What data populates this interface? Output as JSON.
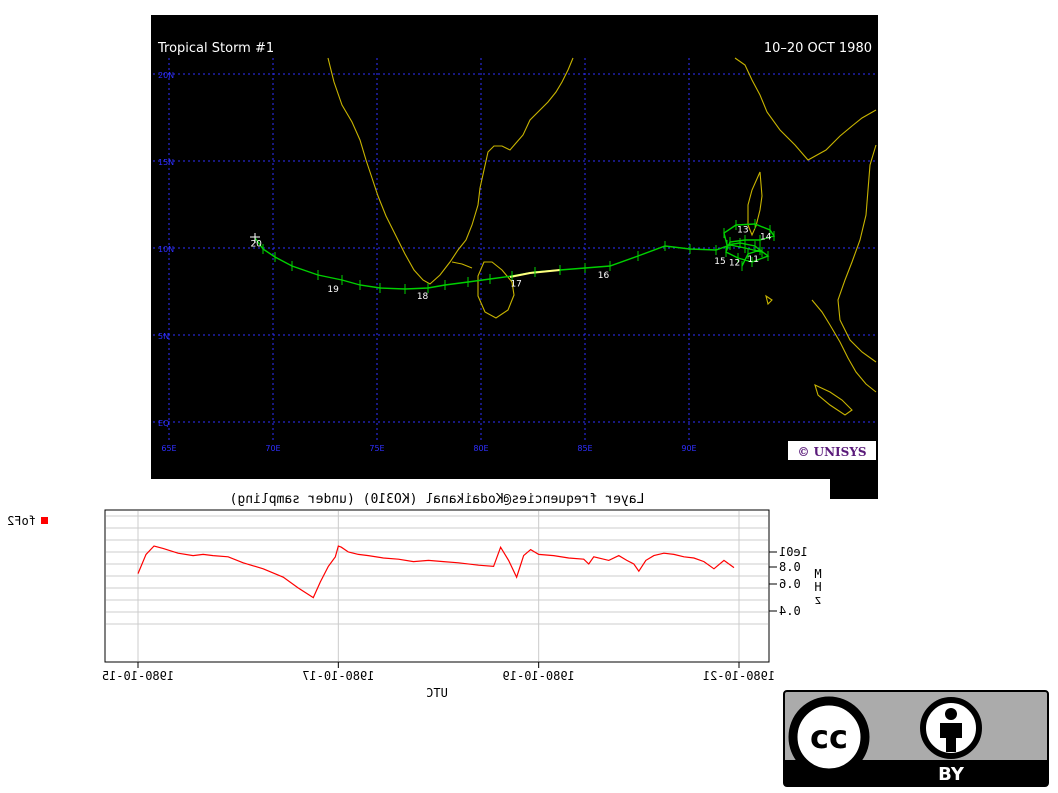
{
  "colors": {
    "map_bg": "#000000",
    "grid": "#2f2fff",
    "coast": "#c8b400",
    "track": "#00d000",
    "track_highlight": "#ffff80",
    "plot_line": "#ff0000",
    "legend_marker": "#ff0000",
    "unisys": "#5a1a7a"
  },
  "map": {
    "title": "Tropical Storm #1",
    "date_range": "10–20 OCT 1980",
    "logo": "© UNISYS",
    "lat_labels": [
      "20N",
      "15N",
      "10N",
      "5N",
      "EQ"
    ],
    "lon_labels": [
      "65E",
      "70E",
      "75E",
      "80E",
      "85E",
      "90E"
    ],
    "day_labels": [
      {
        "text": "20",
        "lon": 69.3,
        "lat": 10.6
      },
      {
        "text": "19",
        "lon": 73.0,
        "lat": 8.0
      },
      {
        "text": "18",
        "lon": 77.3,
        "lat": 7.6
      },
      {
        "text": "17",
        "lon": 81.8,
        "lat": 8.3
      },
      {
        "text": "16",
        "lon": 86.0,
        "lat": 8.8
      },
      {
        "text": "15",
        "lon": 91.6,
        "lat": 9.6
      },
      {
        "text": "12",
        "lon": 92.3,
        "lat": 9.5
      },
      {
        "text": "11",
        "lon": 93.2,
        "lat": 9.7
      },
      {
        "text": "13",
        "lon": 92.7,
        "lat": 11.4
      },
      {
        "text": "14",
        "lon": 93.8,
        "lat": 11.0
      }
    ]
  },
  "chart_data": {
    "type": "line",
    "title": "Layer frequencies@Kodaikanal (KO310) (under sampling)",
    "xlabel": "UTC",
    "ylabel": "MHz",
    "y_ticks": [
      "1e01",
      "0.8",
      "0.6",
      "0.4"
    ],
    "x_ticks": [
      "1980-10-15",
      "1980-10-17",
      "1980-10-19",
      "1980-10-21"
    ],
    "legend": [
      "foF2"
    ],
    "mirrored": true,
    "xlim_days_from_1980_10_15": [
      0,
      6
    ],
    "series": [
      {
        "name": "foF2",
        "x_days": [
          0.0,
          0.08,
          0.16,
          0.25,
          0.4,
          0.55,
          0.65,
          0.75,
          0.9,
          1.05,
          1.25,
          1.45,
          1.6,
          1.75,
          1.82,
          1.9,
          1.97,
          2.0,
          2.03,
          2.1,
          2.2,
          2.3,
          2.45,
          2.6,
          2.75,
          2.9,
          3.05,
          3.2,
          3.4,
          3.55,
          3.62,
          3.7,
          3.78,
          3.85,
          3.92,
          4.0,
          4.15,
          4.3,
          4.45,
          4.5,
          4.55,
          4.7,
          4.8,
          4.88,
          4.95,
          5.0,
          5.07,
          5.15,
          5.25,
          5.35,
          5.45,
          5.55,
          5.65,
          5.75,
          5.85,
          5.95
        ],
        "values": [
          7.2,
          8.8,
          9.5,
          9.3,
          8.9,
          8.7,
          8.8,
          8.7,
          8.6,
          8.1,
          7.6,
          6.9,
          6.0,
          5.2,
          6.5,
          7.8,
          8.6,
          9.5,
          9.4,
          9.0,
          8.8,
          8.7,
          8.5,
          8.4,
          8.2,
          8.3,
          8.2,
          8.1,
          7.9,
          7.8,
          9.4,
          8.3,
          6.9,
          8.7,
          9.2,
          8.8,
          8.7,
          8.5,
          8.4,
          8.0,
          8.6,
          8.3,
          8.7,
          8.3,
          8.0,
          7.4,
          8.3,
          8.7,
          8.9,
          8.8,
          8.6,
          8.5,
          8.2,
          7.6,
          8.3,
          7.7
        ]
      }
    ],
    "grid": true
  },
  "cc_badge": {
    "cc_text": "cc",
    "by_text": "BY"
  }
}
